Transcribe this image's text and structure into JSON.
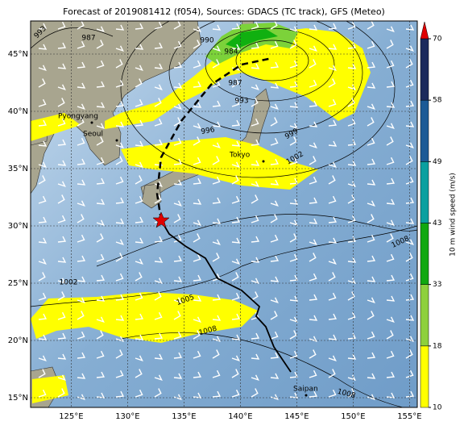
{
  "title": "Forecast of 2019081412 (f054), Sources: GDACS (TC track), GFS (Meteo)",
  "map": {
    "lon_ticks": [
      {
        "value": 125,
        "label": "125°E"
      },
      {
        "value": 130,
        "label": "130°E"
      },
      {
        "value": 135,
        "label": "135°E"
      },
      {
        "value": 140,
        "label": "140°E"
      },
      {
        "value": 145,
        "label": "145°E"
      },
      {
        "value": 150,
        "label": "150°E"
      },
      {
        "value": 155,
        "label": "155°E"
      }
    ],
    "lat_ticks": [
      {
        "value": 15,
        "label": "15°N"
      },
      {
        "value": 20,
        "label": "20°N"
      },
      {
        "value": 25,
        "label": "25°N"
      },
      {
        "value": 30,
        "label": "30°N"
      },
      {
        "value": 35,
        "label": "35°N"
      },
      {
        "value": 40,
        "label": "40°N"
      },
      {
        "value": 45,
        "label": "45°N"
      }
    ],
    "places": [
      "Pyongyang",
      "Seoul",
      "Tokyo",
      "Saipan"
    ],
    "contour_labels": [
      "993",
      "987",
      "990",
      "984",
      "987",
      "993",
      "996",
      "999",
      "1002",
      "1008",
      "1005",
      "1008",
      "1002",
      "1008"
    ]
  },
  "colorbar": {
    "label": "10 m wind speed (m/s)",
    "ticks": [
      10,
      18,
      33,
      43,
      49,
      58,
      70
    ],
    "colors": [
      "#ffff00",
      "#8ed03c",
      "#10a810",
      "#0aa0a0",
      "#1c5a96",
      "#1b2a5c"
    ],
    "extend_color": "#e00000"
  }
}
